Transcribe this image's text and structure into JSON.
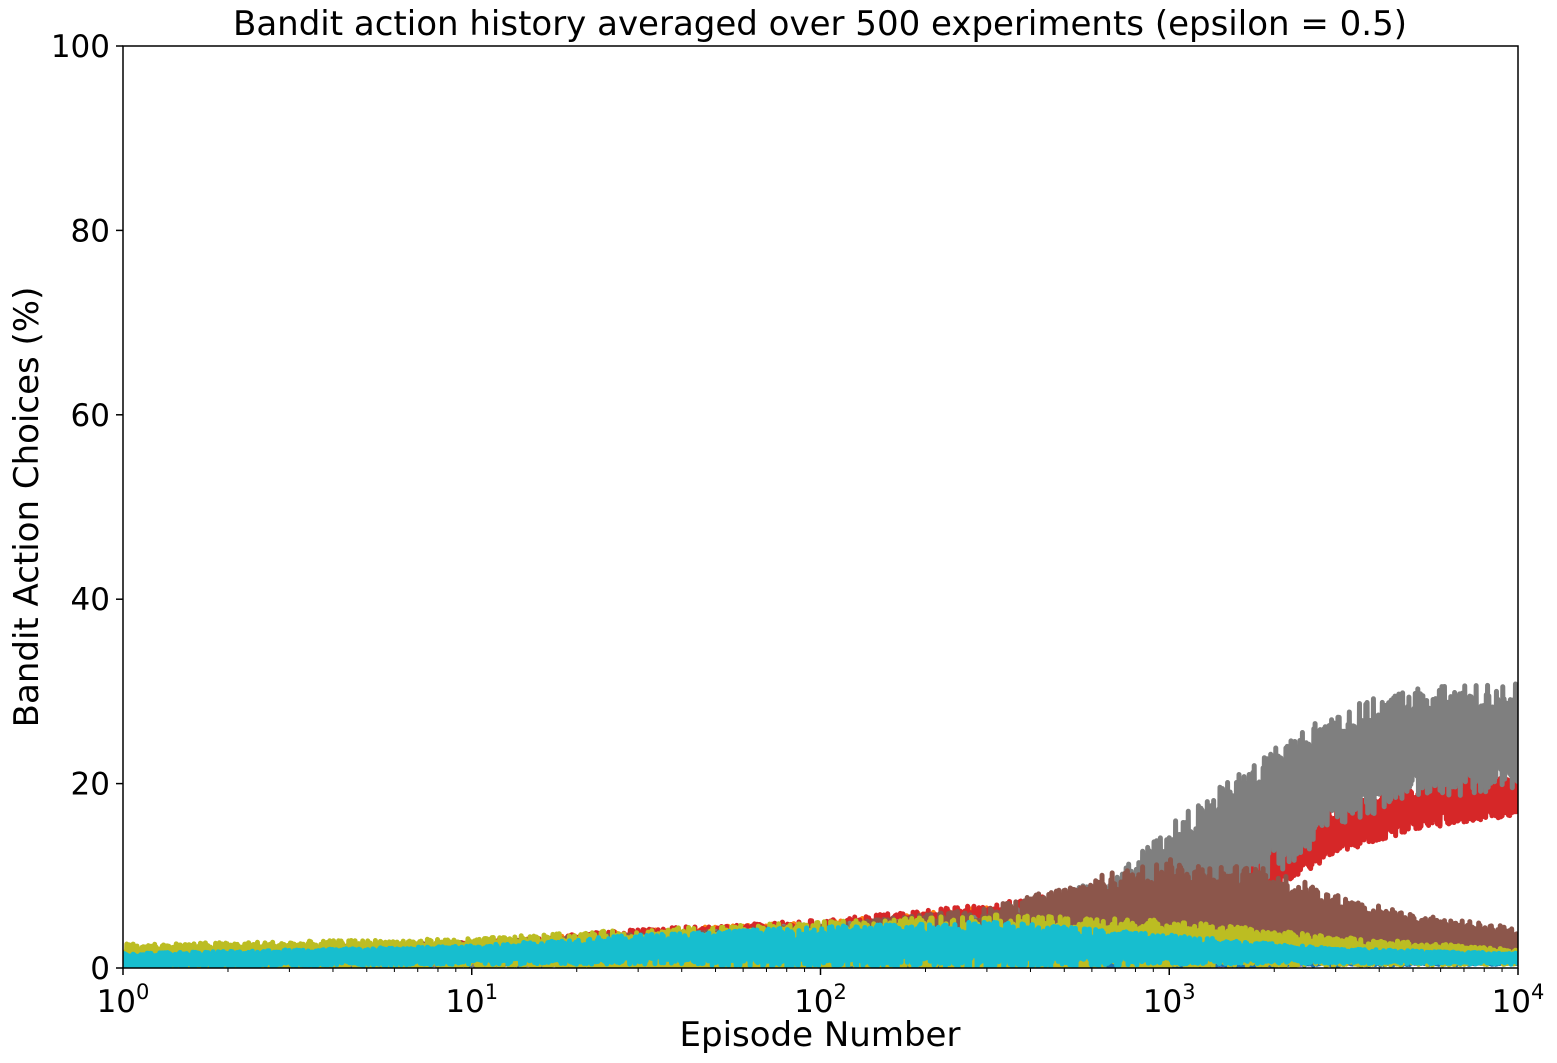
{
  "chart_data": {
    "type": "line",
    "title": "Bandit action history averaged over 500 experiments (epsilon = 0.5)",
    "xlabel": "Episode Number",
    "ylabel": "Bandit Action Choices (%)",
    "xscale": "log",
    "xlim": [
      1,
      10000
    ],
    "ylim": [
      0,
      100
    ],
    "grid": false,
    "legend": "none",
    "x_ticks": [
      {
        "base": "10",
        "exp": "0"
      },
      {
        "base": "10",
        "exp": "1"
      },
      {
        "base": "10",
        "exp": "2"
      },
      {
        "base": "10",
        "exp": "3"
      },
      {
        "base": "10",
        "exp": "4"
      }
    ],
    "y_ticks": [
      "0",
      "20",
      "40",
      "60",
      "80",
      "100"
    ],
    "y_tick_values": [
      0,
      20,
      40,
      60,
      80,
      100
    ],
    "series": [
      {
        "color": "#9467bd",
        "x": [
          1,
          10,
          30,
          100,
          300,
          1000,
          3000,
          10000
        ],
        "y": [
          1.0,
          1.5,
          1.7,
          1.5,
          1.3,
          1.1,
          1.0,
          1.0
        ],
        "band": [
          0.8,
          1.0,
          1.6,
          2.0,
          2.0,
          1.0,
          0.6,
          0.5
        ]
      },
      {
        "color": "#e377c2",
        "x": [
          1,
          10,
          30,
          100,
          300,
          1000,
          3000,
          10000
        ],
        "y": [
          1.0,
          1.4,
          1.8,
          1.6,
          1.4,
          1.2,
          1.1,
          1.0
        ],
        "band": [
          0.8,
          1.0,
          1.6,
          2.0,
          2.0,
          1.0,
          0.6,
          0.5
        ]
      },
      {
        "color": "#2ca02c",
        "x": [
          1,
          10,
          30,
          100,
          300,
          1000,
          3000,
          10000
        ],
        "y": [
          1.0,
          1.6,
          2.2,
          2.5,
          2.8,
          2.0,
          1.5,
          1.2
        ],
        "band": [
          0.8,
          1.0,
          1.6,
          2.0,
          2.2,
          1.2,
          0.6,
          0.5
        ]
      },
      {
        "color": "#1f77b4",
        "x": [
          1,
          10,
          30,
          100,
          300,
          1000,
          3000,
          10000
        ],
        "y": [
          0.9,
          1.3,
          1.6,
          1.4,
          1.2,
          1.0,
          0.9,
          0.9
        ],
        "band": [
          0.8,
          1.0,
          1.4,
          1.8,
          1.8,
          1.0,
          0.6,
          0.5
        ]
      },
      {
        "color": "#ff7f0e",
        "x": [
          1,
          10,
          30,
          100,
          300,
          1000,
          3000,
          10000
        ],
        "y": [
          1.0,
          1.8,
          2.5,
          3.0,
          4.0,
          3.0,
          1.6,
          1.2
        ],
        "band": [
          0.8,
          1.0,
          1.6,
          2.0,
          2.6,
          1.6,
          0.6,
          0.5
        ]
      },
      {
        "color": "#d62728",
        "x": [
          1,
          10,
          30,
          100,
          300,
          1000,
          2000,
          3000,
          5000,
          10000
        ],
        "y": [
          1.0,
          1.8,
          2.6,
          3.2,
          4.5,
          7.0,
          11.0,
          15.0,
          17.5,
          19.0
        ],
        "band": [
          0.8,
          1.0,
          1.6,
          2.0,
          2.4,
          2.6,
          2.6,
          2.6,
          2.6,
          2.4
        ]
      },
      {
        "color": "#7f7f7f",
        "x": [
          1,
          10,
          30,
          100,
          300,
          700,
          1000,
          2000,
          3000,
          5000,
          10000
        ],
        "y": [
          0.8,
          1.2,
          2.0,
          2.8,
          3.5,
          6.0,
          9.5,
          17.0,
          21.5,
          24.5,
          25.0
        ],
        "band": [
          0.8,
          1.0,
          1.6,
          2.0,
          2.2,
          4.0,
          6.0,
          7.0,
          6.5,
          6.0,
          6.0
        ]
      },
      {
        "color": "#8c564b",
        "x": [
          1,
          10,
          30,
          100,
          300,
          700,
          1000,
          2000,
          3000,
          5000,
          10000
        ],
        "y": [
          1.2,
          1.8,
          2.2,
          2.6,
          3.5,
          6.0,
          6.8,
          6.2,
          4.8,
          3.6,
          2.8
        ],
        "band": [
          0.8,
          1.0,
          1.6,
          2.0,
          3.0,
          4.5,
          5.0,
          4.5,
          3.2,
          2.2,
          1.6
        ]
      },
      {
        "color": "#bcbd22",
        "x": [
          1,
          10,
          30,
          100,
          300,
          1000,
          3000,
          10000
        ],
        "y": [
          1.2,
          1.6,
          1.8,
          2.0,
          2.4,
          2.6,
          1.8,
          1.2
        ],
        "band": [
          1.4,
          1.6,
          2.4,
          3.0,
          3.4,
          2.6,
          1.6,
          0.8
        ]
      },
      {
        "color": "#17becf",
        "x": [
          1,
          10,
          30,
          100,
          300,
          1000,
          3000,
          10000
        ],
        "y": [
          0.8,
          1.4,
          2.0,
          2.3,
          2.5,
          2.0,
          1.3,
          1.0
        ],
        "band": [
          0.8,
          1.0,
          1.6,
          2.2,
          2.6,
          1.6,
          0.8,
          0.6
        ]
      }
    ]
  }
}
